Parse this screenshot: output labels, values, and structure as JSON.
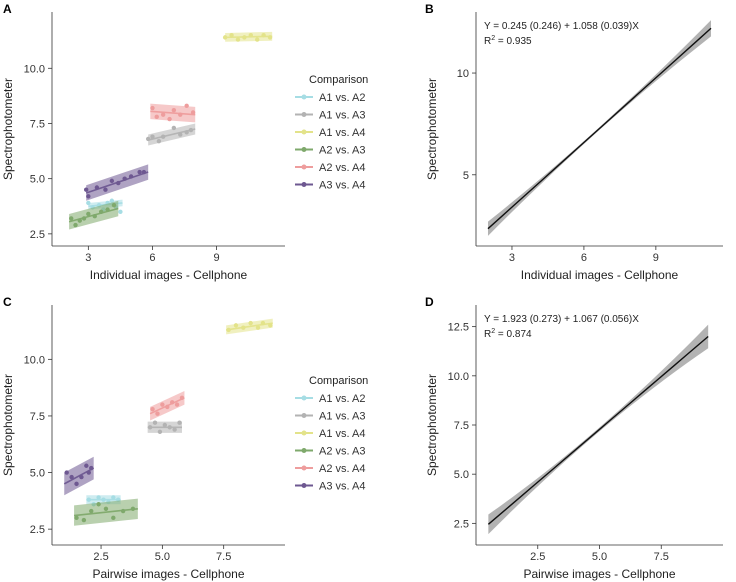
{
  "figure": {
    "panel_labels": [
      "A",
      "B",
      "C",
      "D"
    ]
  },
  "legend": {
    "title": "Comparison",
    "entries": [
      {
        "name": "A1 vs. A2",
        "color": "#a6dde4"
      },
      {
        "name": "A1 vs. A3",
        "color": "#b3b3b3"
      },
      {
        "name": "A1 vs. A4",
        "color": "#e3e38a"
      },
      {
        "name": "A2 vs. A3",
        "color": "#7fa96c"
      },
      {
        "name": "A2 vs. A4",
        "color": "#ee9d9d"
      },
      {
        "name": "A3 vs. A4",
        "color": "#6e5891"
      }
    ]
  },
  "chart_data": [
    {
      "panel": "A",
      "type": "scatter",
      "title": "",
      "xlabel": "Individual images - Cellphone",
      "ylabel": "Spectrophotometer",
      "xlim": [
        1.3,
        12.2
      ],
      "ylim": [
        1.95,
        12.55
      ],
      "xticks": [
        3,
        6,
        9
      ],
      "yticks": [
        2.5,
        5.0,
        7.5,
        10.0
      ],
      "xtick_labels": [
        "3",
        "6",
        "9"
      ],
      "ytick_labels": [
        "2.5",
        "5.0",
        "7.5",
        "10.0"
      ],
      "grid": false,
      "legend_position": "right",
      "series": [
        {
          "name": "A1 vs. A2",
          "points": [
            [
              3.0,
              3.9
            ],
            [
              3.2,
              3.7
            ],
            [
              3.5,
              3.8
            ],
            [
              3.7,
              3.6
            ],
            [
              3.9,
              3.9
            ],
            [
              4.1,
              4.0
            ],
            [
              4.3,
              3.7
            ],
            [
              4.5,
              3.5
            ]
          ],
          "fit": {
            "x": [
              3.0,
              4.6
            ],
            "y": [
              3.75,
              3.9
            ]
          },
          "ci": 0.15
        },
        {
          "name": "A1 vs. A3",
          "points": [
            [
              5.8,
              6.8
            ],
            [
              6.0,
              6.9
            ],
            [
              6.3,
              6.7
            ],
            [
              6.5,
              6.9
            ],
            [
              7.0,
              7.3
            ],
            [
              7.3,
              7.0
            ],
            [
              7.6,
              7.1
            ],
            [
              7.8,
              7.2
            ]
          ],
          "fit": {
            "x": [
              5.8,
              8.0
            ],
            "y": [
              6.75,
              7.25
            ]
          },
          "ci": 0.25
        },
        {
          "name": "A1 vs. A4",
          "points": [
            [
              9.4,
              11.4
            ],
            [
              9.7,
              11.5
            ],
            [
              10.0,
              11.3
            ],
            [
              10.3,
              11.4
            ],
            [
              10.6,
              11.5
            ],
            [
              10.9,
              11.3
            ],
            [
              11.2,
              11.5
            ],
            [
              11.5,
              11.4
            ]
          ],
          "fit": {
            "x": [
              9.4,
              11.6
            ],
            "y": [
              11.4,
              11.45
            ]
          },
          "ci": 0.2
        },
        {
          "name": "A2 vs. A3",
          "points": [
            [
              2.2,
              3.2
            ],
            [
              2.4,
              2.9
            ],
            [
              2.6,
              3.1
            ],
            [
              2.8,
              3.2
            ],
            [
              3.0,
              3.4
            ],
            [
              3.3,
              3.3
            ],
            [
              3.6,
              3.5
            ],
            [
              3.9,
              3.6
            ],
            [
              4.2,
              3.8
            ]
          ],
          "fit": {
            "x": [
              2.1,
              4.4
            ],
            "y": [
              3.05,
              3.65
            ]
          },
          "ci": 0.35
        },
        {
          "name": "A2 vs. A4",
          "points": [
            [
              6.0,
              8.2
            ],
            [
              6.2,
              7.8
            ],
            [
              6.5,
              7.9
            ],
            [
              6.8,
              7.7
            ],
            [
              7.0,
              8.1
            ],
            [
              7.3,
              7.9
            ],
            [
              7.6,
              8.3
            ],
            [
              7.9,
              8.0
            ]
          ],
          "fit": {
            "x": [
              5.9,
              8.0
            ],
            "y": [
              8.05,
              7.9
            ]
          },
          "ci": 0.35
        },
        {
          "name": "A3 vs. A4",
          "points": [
            [
              2.9,
              4.5
            ],
            [
              3.0,
              4.2
            ],
            [
              3.4,
              4.6
            ],
            [
              3.8,
              4.5
            ],
            [
              4.1,
              4.9
            ],
            [
              4.4,
              4.8
            ],
            [
              4.7,
              5.0
            ],
            [
              5.0,
              5.1
            ],
            [
              5.4,
              5.3
            ],
            [
              5.6,
              5.3
            ]
          ],
          "fit": {
            "x": [
              2.9,
              5.8
            ],
            "y": [
              4.35,
              5.3
            ]
          },
          "ci": 0.35
        }
      ]
    },
    {
      "panel": "B",
      "type": "line",
      "title": "",
      "xlabel": "Individual images - Cellphone",
      "ylabel": "Spectrophotometer",
      "xlim": [
        1.5,
        11.8
      ],
      "ylim": [
        1.5,
        13.0
      ],
      "xticks": [
        3,
        6,
        9
      ],
      "yticks": [
        5,
        10
      ],
      "xtick_labels": [
        "3",
        "6",
        "9"
      ],
      "ytick_labels": [
        "5",
        "10"
      ],
      "grid": false,
      "equation": "Y = 0.245 (0.246) + 1.058 (0.039)X",
      "r_squared_label": "R",
      "r_squared_exp": "2",
      "r_squared_value": "= 0.935",
      "series": [
        {
          "name": "fit",
          "x": [
            2.0,
            11.3
          ],
          "y": [
            2.35,
            12.2
          ],
          "ci": [
            0.35,
            0.07,
            0.4
          ]
        }
      ]
    },
    {
      "panel": "C",
      "type": "scatter",
      "title": "",
      "xlabel": "Pairwise images - Cellphone",
      "ylabel": "Spectrophotometer",
      "xlim": [
        0.5,
        10.0
      ],
      "ylim": [
        1.8,
        12.4
      ],
      "xticks": [
        2.5,
        5.0,
        7.5
      ],
      "yticks": [
        2.5,
        5.0,
        7.5,
        10.0
      ],
      "xtick_labels": [
        "2.5",
        "5.0",
        "7.5"
      ],
      "ytick_labels": [
        "2.5",
        "5.0",
        "7.5",
        "10.0"
      ],
      "grid": false,
      "legend_position": "right",
      "series": [
        {
          "name": "A1 vs. A2",
          "points": [
            [
              2.0,
              3.8
            ],
            [
              2.2,
              3.6
            ],
            [
              2.4,
              3.9
            ],
            [
              2.6,
              3.8
            ],
            [
              2.8,
              3.7
            ],
            [
              3.0,
              3.9
            ],
            [
              3.2,
              3.8
            ]
          ],
          "fit": {
            "x": [
              1.9,
              3.3
            ],
            "y": [
              3.8,
              3.8
            ]
          },
          "ci": 0.2
        },
        {
          "name": "A1 vs. A3",
          "points": [
            [
              4.5,
              7.0
            ],
            [
              4.7,
              7.2
            ],
            [
              4.9,
              6.8
            ],
            [
              5.1,
              7.1
            ],
            [
              5.3,
              7.0
            ],
            [
              5.5,
              6.9
            ],
            [
              5.7,
              7.2
            ]
          ],
          "fit": {
            "x": [
              4.4,
              5.8
            ],
            "y": [
              7.0,
              7.0
            ]
          },
          "ci": 0.25
        },
        {
          "name": "A1 vs. A4",
          "points": [
            [
              7.7,
              11.3
            ],
            [
              8.0,
              11.5
            ],
            [
              8.3,
              11.4
            ],
            [
              8.6,
              11.6
            ],
            [
              8.9,
              11.4
            ],
            [
              9.1,
              11.6
            ],
            [
              9.4,
              11.5
            ]
          ],
          "fit": {
            "x": [
              7.6,
              9.5
            ],
            "y": [
              11.3,
              11.6
            ]
          },
          "ci": 0.2
        },
        {
          "name": "A2 vs. A3",
          "points": [
            [
              1.5,
              3.0
            ],
            [
              1.8,
              2.9
            ],
            [
              2.1,
              3.3
            ],
            [
              2.4,
              3.6
            ],
            [
              2.7,
              3.4
            ],
            [
              3.0,
              3.0
            ],
            [
              3.4,
              3.3
            ],
            [
              3.8,
              3.4
            ]
          ],
          "fit": {
            "x": [
              1.4,
              4.0
            ],
            "y": [
              3.1,
              3.4
            ]
          },
          "ci": 0.45
        },
        {
          "name": "A2 vs. A4",
          "points": [
            [
              4.6,
              7.8
            ],
            [
              4.8,
              7.6
            ],
            [
              5.0,
              8.0
            ],
            [
              5.2,
              7.9
            ],
            [
              5.4,
              8.1
            ],
            [
              5.6,
              8.0
            ],
            [
              5.8,
              8.3
            ]
          ],
          "fit": {
            "x": [
              4.5,
              5.9
            ],
            "y": [
              7.6,
              8.3
            ]
          },
          "ci": 0.3
        },
        {
          "name": "A3 vs. A4",
          "points": [
            [
              1.1,
              5.0
            ],
            [
              1.3,
              4.8
            ],
            [
              1.5,
              4.5
            ],
            [
              1.7,
              4.8
            ],
            [
              1.9,
              5.3
            ],
            [
              2.0,
              5.0
            ],
            [
              2.1,
              5.2
            ]
          ],
          "fit": {
            "x": [
              1.0,
              2.2
            ],
            "y": [
              4.5,
              5.2
            ]
          },
          "ci": 0.5
        }
      ]
    },
    {
      "panel": "D",
      "type": "line",
      "title": "",
      "xlabel": "Pairwise images - Cellphone",
      "ylabel": "Spectrophotometer",
      "xlim": [
        0.0,
        10.0
      ],
      "ylim": [
        1.4,
        13.6
      ],
      "xticks": [
        2.5,
        5.0,
        7.5
      ],
      "yticks": [
        2.5,
        5.0,
        7.5,
        10.0,
        12.5
      ],
      "xtick_labels": [
        "2.5",
        "5.0",
        "7.5"
      ],
      "ytick_labels": [
        "2.5",
        "5.0",
        "7.5",
        "10.0",
        "12.5"
      ],
      "grid": false,
      "equation": "Y = 1.923 (0.273) + 1.067 (0.056)X",
      "r_squared_label": "R",
      "r_squared_exp": "2",
      "r_squared_value": "= 0.874",
      "series": [
        {
          "name": "fit",
          "x": [
            0.5,
            9.4
          ],
          "y": [
            2.45,
            12.0
          ],
          "ci": [
            0.5,
            0.1,
            0.6
          ]
        }
      ]
    }
  ]
}
